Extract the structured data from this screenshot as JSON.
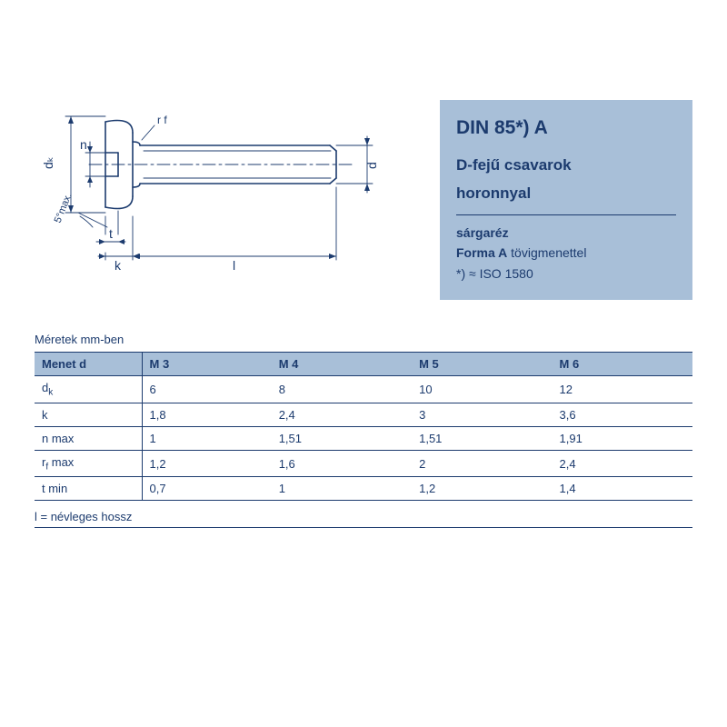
{
  "panel": {
    "standard": "DIN 85*) A",
    "title_line1": "D-fejű csavarok",
    "title_line2": "horonnyal",
    "material": "sárgaréz",
    "forma_label": "Forma A",
    "forma_text": " tövigmenettel",
    "iso_note": "*) ≈ ISO 1580",
    "bg_color": "#a8bfd8",
    "text_color": "#1c3b6e",
    "std_fontsize": 21,
    "title_fontsize": 17,
    "body_fontsize": 14
  },
  "diagram": {
    "stroke_color": "#1c3b6e",
    "stroke_width": 1.6,
    "labels": {
      "dk": "dₖ",
      "n": "n",
      "angle": "5°max.",
      "rf": "r f",
      "t": "t",
      "k": "k",
      "l": "l",
      "d": "d"
    }
  },
  "table": {
    "caption": "Méretek mm-ben",
    "header_bg": "#a8bfd8",
    "border_color": "#1c3b6e",
    "fontsize": 13,
    "columns": [
      "Menet d",
      "M 3",
      "M 4",
      "M 5",
      "M 6"
    ],
    "rows": [
      {
        "label_html": "d<sub>k</sub>",
        "cells": [
          "6",
          "8",
          "10",
          "12"
        ]
      },
      {
        "label_html": "k",
        "cells": [
          "1,8",
          "2,4",
          "3",
          "3,6"
        ]
      },
      {
        "label_html": "n max",
        "cells": [
          "1",
          "1,51",
          "1,51",
          "1,91"
        ]
      },
      {
        "label_html": "r<sub>f</sub> max",
        "cells": [
          "1,2",
          "1,6",
          "2",
          "2,4"
        ]
      },
      {
        "label_html": "t min",
        "cells": [
          "0,7",
          "1",
          "1,2",
          "1,4"
        ]
      }
    ]
  },
  "footnote": "l = névleges hossz"
}
